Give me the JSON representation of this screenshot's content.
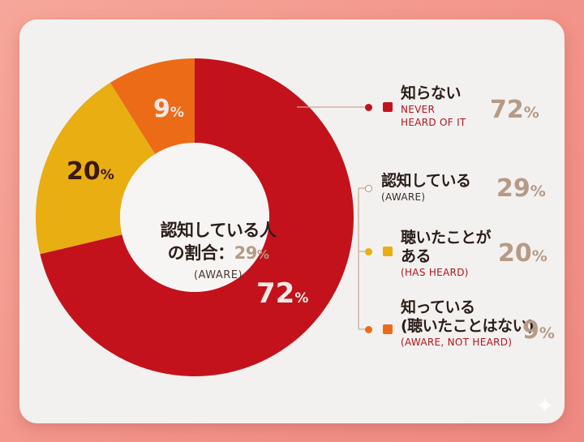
{
  "center": {
    "line1": "認知している人",
    "line2_prefix": "の割合：",
    "line2_value": "29",
    "line2_unit": "%",
    "sub": "(AWARE)"
  },
  "legend": [
    {
      "jp": "知らない",
      "en": "NEVER\nHEARD OF IT",
      "value": "72",
      "unit": "%",
      "color": "#c3121c",
      "en_color": "#b0141c",
      "marker": "square"
    },
    {
      "jp": "認知している",
      "en": "(AWARE)",
      "value": "29",
      "unit": "%",
      "color": "#ffffff",
      "en_color": "#3a2e2a",
      "marker": "hollow"
    },
    {
      "jp": "聴いたことが\nある",
      "en": "(HAS HEARD)",
      "value": "20",
      "unit": "%",
      "color": "#e8ae12",
      "en_color": "#b0141c",
      "marker": "square"
    },
    {
      "jp": "知っている\n(聴いたことはない)",
      "en": "(AWARE, NOT HEARD)",
      "value": "9",
      "unit": "%",
      "color": "#ec6b17",
      "en_color": "#b0141c",
      "marker": "square"
    }
  ],
  "chart_data": {
    "type": "pie",
    "donut": true,
    "labels": [
      "知らない",
      "聴いたことがある",
      "知っている(聴いたことはない)"
    ],
    "values": [
      72,
      20,
      9
    ],
    "value_labels": [
      {
        "value": "72",
        "unit": "%"
      },
      {
        "value": "20",
        "unit": "%"
      },
      {
        "value": "9",
        "unit": "%"
      }
    ],
    "colors": [
      "#c3121c",
      "#e8ae12",
      "#ec6b17"
    ],
    "label_colors": [
      "#f4e9e6",
      "#3a1810",
      "#f4e9e6"
    ],
    "start": "top",
    "direction": "clockwise",
    "legend_position": "right"
  }
}
